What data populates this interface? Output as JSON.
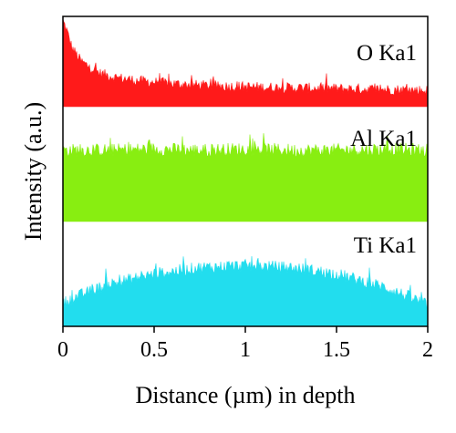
{
  "chart_data": {
    "type": "area",
    "title": "",
    "xlabel": "Distance (µm) in depth",
    "ylabel": "Intensity (a.u.)",
    "xlim": [
      0,
      2
    ],
    "xticks": [
      "0",
      "0.5",
      "1",
      "1.5",
      "2"
    ],
    "xtick_values": [
      0,
      0.5,
      1,
      1.5,
      2
    ],
    "grid": false,
    "legend": "none",
    "series": [
      {
        "name": "O Ka1",
        "color": "#ff1a1a",
        "x": [
          0,
          0.02,
          0.05,
          0.1,
          0.2,
          0.3,
          0.4,
          0.5,
          0.7,
          1.0,
          1.2,
          1.5,
          1.8,
          2.0
        ],
        "y": [
          0.95,
          0.85,
          0.65,
          0.5,
          0.37,
          0.32,
          0.29,
          0.27,
          0.24,
          0.22,
          0.21,
          0.2,
          0.19,
          0.18
        ]
      },
      {
        "name": "Al Ka1",
        "color": "#88ee11",
        "x": [
          0,
          0.25,
          0.5,
          0.75,
          1.0,
          1.25,
          1.5,
          1.75,
          2.0
        ],
        "y": [
          0.62,
          0.62,
          0.63,
          0.62,
          0.63,
          0.62,
          0.62,
          0.63,
          0.62
        ]
      },
      {
        "name": "Ti Ka1",
        "color": "#22ddee",
        "x": [
          0,
          0.1,
          0.25,
          0.5,
          0.75,
          1.0,
          1.25,
          1.5,
          1.75,
          1.9,
          2.0
        ],
        "y": [
          0.22,
          0.3,
          0.4,
          0.5,
          0.56,
          0.58,
          0.56,
          0.5,
          0.38,
          0.28,
          0.2
        ]
      }
    ]
  }
}
